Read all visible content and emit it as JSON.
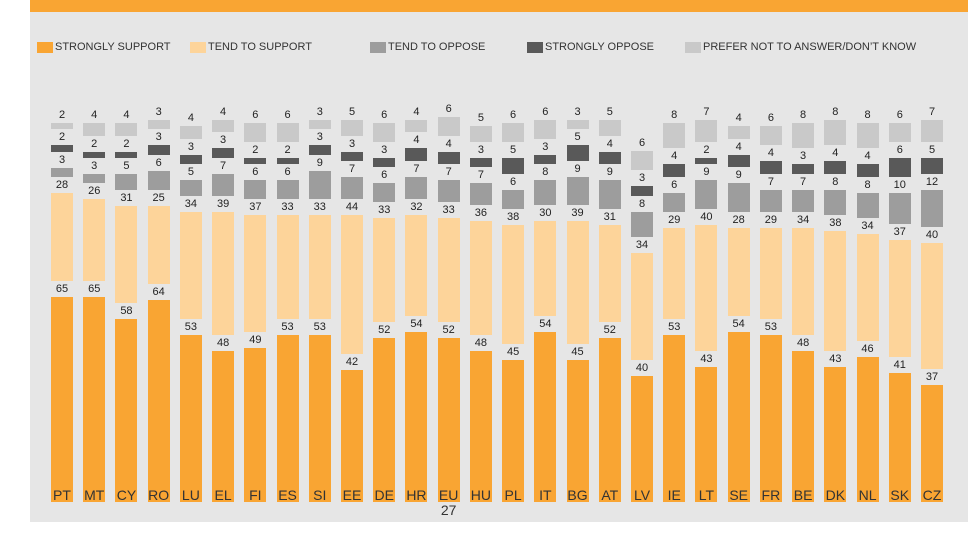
{
  "chart_data": {
    "type": "stacked_bar",
    "categories": [
      "PT",
      "MT",
      "CY",
      "RO",
      "LU",
      "EL",
      "FI",
      "ES",
      "SI",
      "EE",
      "DE",
      "HR",
      "EU 27",
      "HU",
      "PL",
      "IT",
      "BG",
      "AT",
      "LV",
      "IE",
      "LT",
      "SE",
      "FR",
      "BE",
      "DK",
      "NL",
      "SK",
      "CZ"
    ],
    "series": [
      {
        "name": "STRONGLY SUPPORT",
        "color": "#f9a533",
        "values": [
          65,
          65,
          58,
          64,
          53,
          48,
          49,
          53,
          53,
          42,
          52,
          54,
          52,
          48,
          45,
          54,
          45,
          52,
          40,
          53,
          43,
          54,
          53,
          48,
          43,
          46,
          41,
          37
        ]
      },
      {
        "name": "TEND TO SUPPORT",
        "color": "#fdd49a",
        "values": [
          28,
          26,
          31,
          25,
          34,
          39,
          37,
          33,
          33,
          44,
          33,
          32,
          33,
          36,
          38,
          30,
          39,
          31,
          34,
          29,
          40,
          28,
          29,
          34,
          38,
          34,
          37,
          40
        ]
      },
      {
        "name": "TEND TO OPPOSE",
        "color": "#9d9d9d",
        "values": [
          3,
          3,
          5,
          6,
          5,
          7,
          6,
          6,
          9,
          7,
          6,
          7,
          7,
          7,
          6,
          8,
          9,
          9,
          8,
          6,
          9,
          9,
          7,
          7,
          8,
          8,
          10,
          12
        ]
      },
      {
        "name": "STRONGLY OPPOSE",
        "color": "#595959",
        "values": [
          2,
          2,
          2,
          3,
          3,
          3,
          2,
          2,
          3,
          3,
          3,
          4,
          4,
          3,
          5,
          3,
          5,
          4,
          3,
          4,
          2,
          4,
          4,
          3,
          4,
          4,
          6,
          5
        ]
      },
      {
        "name": "PREFER NOT TO ANSWER/DON’T KNOW",
        "color": "#c9c9c9",
        "values": [
          2,
          4,
          4,
          3,
          4,
          4,
          6,
          6,
          3,
          5,
          6,
          4,
          6,
          5,
          6,
          6,
          3,
          5,
          6,
          8,
          7,
          4,
          6,
          8,
          8,
          8,
          6,
          7
        ]
      }
    ]
  }
}
